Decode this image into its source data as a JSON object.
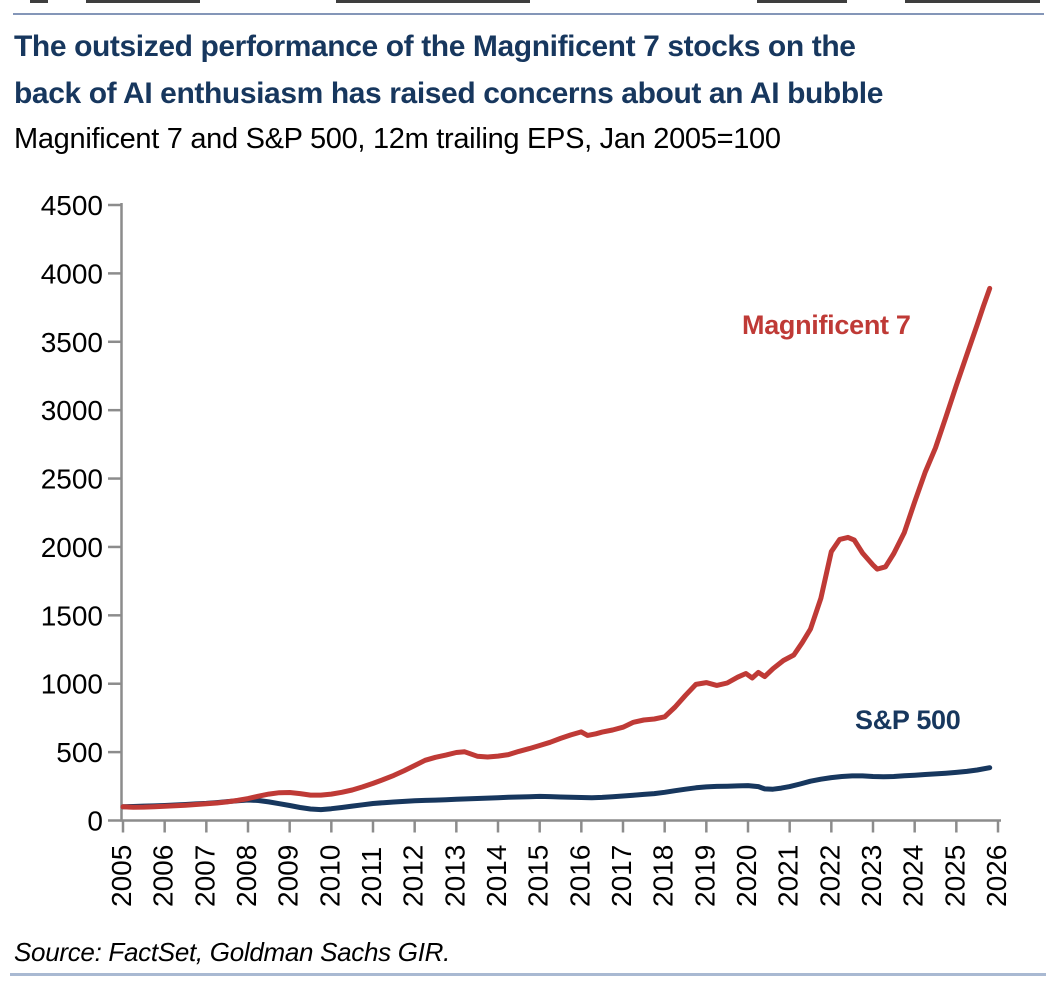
{
  "header": {
    "title_lines": [
      "The outsized performance of the Magnificent 7 stocks on the",
      "back of AI enthusiasm has raised concerns about an AI bubble"
    ],
    "subtitle": "Magnificent 7 and S&P 500, 12m trailing EPS, Jan 2005=100"
  },
  "source": "Source: FactSet, Goldman Sachs GIR.",
  "colors": {
    "title_navy": "#17375e",
    "mag7_red": "#bf3a36",
    "sp500_navy": "#17375e",
    "axis_gray": "#8c8c8c",
    "top_rule_blue": "#8496b8",
    "bottom_rule_blue": "#a9b9d2",
    "tick_text": "#000000"
  },
  "chart_data": {
    "type": "line",
    "title": "The outsized performance of the Magnificent 7 stocks on the back of AI enthusiasm has raised concerns about an AI bubble",
    "subtitle": "Magnificent 7 and S&P 500, 12m trailing EPS, Jan 2005=100",
    "xlabel": "",
    "ylabel": "",
    "x_axis": {
      "range": [
        2005,
        2026.1
      ],
      "ticks": [
        2005,
        2006,
        2007,
        2008,
        2009,
        2010,
        2011,
        2012,
        2013,
        2014,
        2015,
        2016,
        2017,
        2018,
        2019,
        2020,
        2021,
        2022,
        2023,
        2024,
        2025,
        2026
      ],
      "tick_labels": [
        "2005",
        "2006",
        "2007",
        "2008",
        "2009",
        "2010",
        "2011",
        "2012",
        "2013",
        "2014",
        "2015",
        "2016",
        "2017",
        "2018",
        "2019",
        "2020",
        "2021",
        "2022",
        "2023",
        "2024",
        "2025",
        "2026"
      ],
      "label_rotation_deg": -90
    },
    "y_axis": {
      "range": [
        0,
        4500
      ],
      "ticks": [
        0,
        500,
        1000,
        1500,
        2000,
        2500,
        3000,
        3500,
        4000,
        4500
      ],
      "tick_labels": [
        "0",
        "500",
        "1000",
        "1500",
        "2000",
        "2500",
        "3000",
        "3500",
        "4000",
        "4500"
      ]
    },
    "grid": false,
    "legend": "inline-labels",
    "series": [
      {
        "name": "Magnificent 7",
        "color": "#bf3a36",
        "points": [
          [
            2005.0,
            100
          ],
          [
            2005.25,
            97
          ],
          [
            2005.5,
            98
          ],
          [
            2005.75,
            101
          ],
          [
            2006.0,
            104
          ],
          [
            2006.25,
            108
          ],
          [
            2006.5,
            112
          ],
          [
            2006.75,
            117
          ],
          [
            2007.0,
            122
          ],
          [
            2007.25,
            128
          ],
          [
            2007.5,
            136
          ],
          [
            2007.75,
            147
          ],
          [
            2008.0,
            160
          ],
          [
            2008.25,
            178
          ],
          [
            2008.5,
            193
          ],
          [
            2008.75,
            203
          ],
          [
            2009.0,
            205
          ],
          [
            2009.25,
            197
          ],
          [
            2009.5,
            186
          ],
          [
            2009.75,
            186
          ],
          [
            2010.0,
            193
          ],
          [
            2010.25,
            206
          ],
          [
            2010.5,
            223
          ],
          [
            2010.75,
            246
          ],
          [
            2011.0,
            271
          ],
          [
            2011.25,
            300
          ],
          [
            2011.5,
            330
          ],
          [
            2011.75,
            365
          ],
          [
            2012.0,
            402
          ],
          [
            2012.25,
            440
          ],
          [
            2012.5,
            462
          ],
          [
            2012.75,
            478
          ],
          [
            2013.0,
            497
          ],
          [
            2013.2,
            502
          ],
          [
            2013.5,
            470
          ],
          [
            2013.75,
            464
          ],
          [
            2014.0,
            471
          ],
          [
            2014.25,
            482
          ],
          [
            2014.5,
            505
          ],
          [
            2014.75,
            526
          ],
          [
            2015.0,
            548
          ],
          [
            2015.25,
            572
          ],
          [
            2015.5,
            600
          ],
          [
            2015.75,
            626
          ],
          [
            2016.0,
            648
          ],
          [
            2016.15,
            622
          ],
          [
            2016.35,
            634
          ],
          [
            2016.5,
            646
          ],
          [
            2016.75,
            662
          ],
          [
            2017.0,
            682
          ],
          [
            2017.25,
            718
          ],
          [
            2017.5,
            735
          ],
          [
            2017.75,
            742
          ],
          [
            2018.0,
            758
          ],
          [
            2018.25,
            830
          ],
          [
            2018.5,
            915
          ],
          [
            2018.75,
            995
          ],
          [
            2019.0,
            1008
          ],
          [
            2019.25,
            988
          ],
          [
            2019.5,
            1005
          ],
          [
            2019.75,
            1048
          ],
          [
            2019.95,
            1075
          ],
          [
            2020.1,
            1042
          ],
          [
            2020.25,
            1083
          ],
          [
            2020.4,
            1052
          ],
          [
            2020.6,
            1110
          ],
          [
            2020.85,
            1170
          ],
          [
            2021.1,
            1210
          ],
          [
            2021.3,
            1300
          ],
          [
            2021.5,
            1400
          ],
          [
            2021.75,
            1625
          ],
          [
            2022.0,
            1965
          ],
          [
            2022.2,
            2055
          ],
          [
            2022.4,
            2070
          ],
          [
            2022.55,
            2050
          ],
          [
            2022.75,
            1955
          ],
          [
            2023.0,
            1868
          ],
          [
            2023.1,
            1838
          ],
          [
            2023.3,
            1855
          ],
          [
            2023.5,
            1952
          ],
          [
            2023.75,
            2105
          ],
          [
            2024.0,
            2330
          ],
          [
            2024.25,
            2545
          ],
          [
            2024.5,
            2725
          ],
          [
            2024.75,
            2950
          ],
          [
            2025.0,
            3180
          ],
          [
            2025.25,
            3405
          ],
          [
            2025.5,
            3625
          ],
          [
            2025.65,
            3760
          ],
          [
            2025.8,
            3890
          ]
        ]
      },
      {
        "name": "S&P 500",
        "color": "#17375e",
        "points": [
          [
            2005.0,
            100
          ],
          [
            2005.25,
            102
          ],
          [
            2005.5,
            105
          ],
          [
            2005.75,
            107
          ],
          [
            2006.0,
            110
          ],
          [
            2006.25,
            113
          ],
          [
            2006.5,
            117
          ],
          [
            2006.75,
            121
          ],
          [
            2007.0,
            125
          ],
          [
            2007.25,
            131
          ],
          [
            2007.5,
            138
          ],
          [
            2007.75,
            145
          ],
          [
            2008.0,
            150
          ],
          [
            2008.25,
            146
          ],
          [
            2008.5,
            136
          ],
          [
            2008.75,
            123
          ],
          [
            2009.0,
            110
          ],
          [
            2009.25,
            95
          ],
          [
            2009.5,
            84
          ],
          [
            2009.75,
            80
          ],
          [
            2010.0,
            86
          ],
          [
            2010.25,
            95
          ],
          [
            2010.5,
            105
          ],
          [
            2010.75,
            115
          ],
          [
            2011.0,
            124
          ],
          [
            2011.25,
            130
          ],
          [
            2011.5,
            135
          ],
          [
            2011.75,
            140
          ],
          [
            2012.0,
            144
          ],
          [
            2012.25,
            147
          ],
          [
            2012.5,
            149
          ],
          [
            2012.75,
            151
          ],
          [
            2013.0,
            155
          ],
          [
            2013.25,
            158
          ],
          [
            2013.5,
            161
          ],
          [
            2013.75,
            164
          ],
          [
            2014.0,
            167
          ],
          [
            2014.25,
            170
          ],
          [
            2014.5,
            172
          ],
          [
            2014.75,
            174
          ],
          [
            2015.0,
            176
          ],
          [
            2015.25,
            175
          ],
          [
            2015.5,
            172
          ],
          [
            2015.75,
            170
          ],
          [
            2016.0,
            168
          ],
          [
            2016.25,
            167
          ],
          [
            2016.5,
            169
          ],
          [
            2016.75,
            173
          ],
          [
            2017.0,
            179
          ],
          [
            2017.25,
            185
          ],
          [
            2017.5,
            191
          ],
          [
            2017.75,
            197
          ],
          [
            2018.0,
            206
          ],
          [
            2018.25,
            218
          ],
          [
            2018.5,
            229
          ],
          [
            2018.75,
            239
          ],
          [
            2019.0,
            246
          ],
          [
            2019.25,
            249
          ],
          [
            2019.5,
            251
          ],
          [
            2019.75,
            253
          ],
          [
            2020.0,
            255
          ],
          [
            2020.25,
            248
          ],
          [
            2020.4,
            231
          ],
          [
            2020.6,
            229
          ],
          [
            2020.8,
            237
          ],
          [
            2021.0,
            248
          ],
          [
            2021.25,
            267
          ],
          [
            2021.5,
            287
          ],
          [
            2021.75,
            302
          ],
          [
            2022.0,
            314
          ],
          [
            2022.25,
            322
          ],
          [
            2022.5,
            326
          ],
          [
            2022.75,
            326
          ],
          [
            2023.0,
            322
          ],
          [
            2023.25,
            320
          ],
          [
            2023.5,
            322
          ],
          [
            2023.75,
            327
          ],
          [
            2024.0,
            331
          ],
          [
            2024.25,
            336
          ],
          [
            2024.5,
            341
          ],
          [
            2024.75,
            346
          ],
          [
            2025.0,
            352
          ],
          [
            2025.25,
            359
          ],
          [
            2025.5,
            369
          ],
          [
            2025.8,
            386
          ]
        ]
      }
    ],
    "annotations": [
      {
        "text": "Magnificent 7",
        "color": "#bf3a36"
      },
      {
        "text": "S&P 500",
        "color": "#17375e"
      }
    ]
  }
}
